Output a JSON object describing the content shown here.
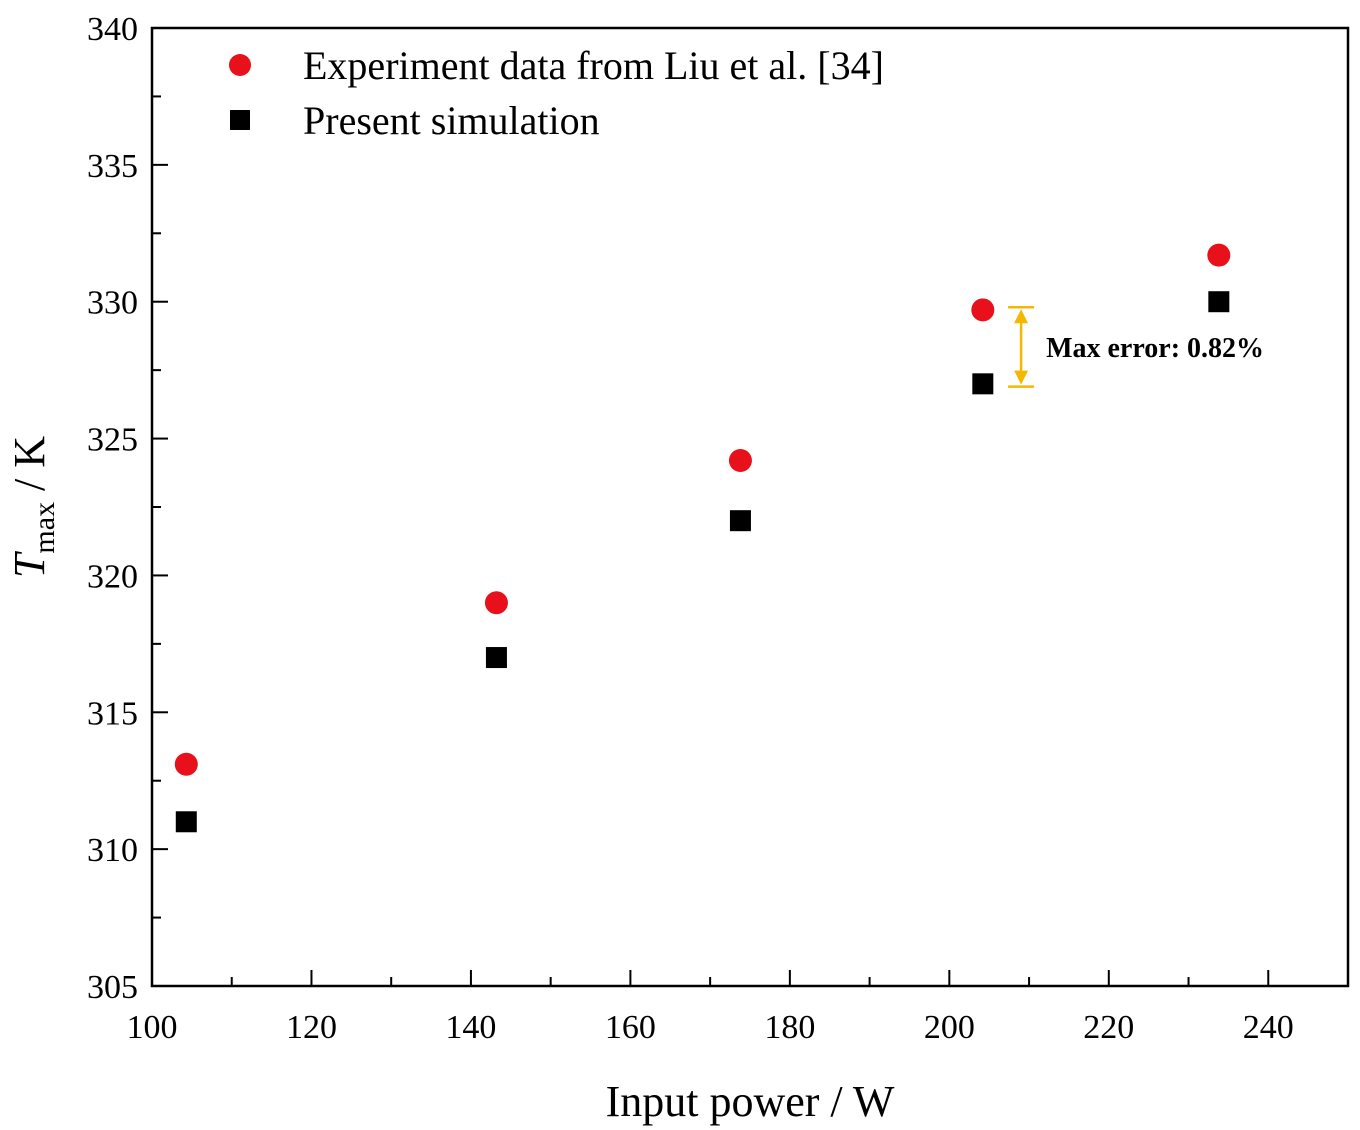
{
  "chart_data": {
    "type": "scatter",
    "title": "",
    "xlabel": "Input power / W",
    "ylabel": {
      "symbol": "T",
      "subscript": "max",
      "unit": " / K"
    },
    "xlim": [
      100,
      250
    ],
    "ylim": [
      305,
      340
    ],
    "x_ticks": [
      100,
      120,
      140,
      160,
      180,
      200,
      220,
      240
    ],
    "y_ticks": [
      305,
      310,
      315,
      320,
      325,
      330,
      335,
      340
    ],
    "x_minor_step": 10,
    "y_minor_step": 2.5,
    "grid": false,
    "legend_position": "top-left",
    "series": [
      {
        "name": "Experiment data from Liu et al. [34]",
        "marker": "circle",
        "color": "#e8101a",
        "x": [
          104.3,
          143.2,
          173.8,
          204.2,
          233.8
        ],
        "y": [
          313.1,
          319.0,
          324.2,
          329.7,
          331.7
        ]
      },
      {
        "name": "Present simulation",
        "marker": "square",
        "color": "#000000",
        "x": [
          104.3,
          143.2,
          173.8,
          204.2,
          233.8
        ],
        "y": [
          311.0,
          317.0,
          322.0,
          327.0,
          330.0
        ]
      }
    ],
    "annotation": {
      "text": "Max error: 0.82%",
      "x": 209,
      "y_from": 329.8,
      "y_to": 326.9,
      "color": "#f5b800"
    }
  }
}
